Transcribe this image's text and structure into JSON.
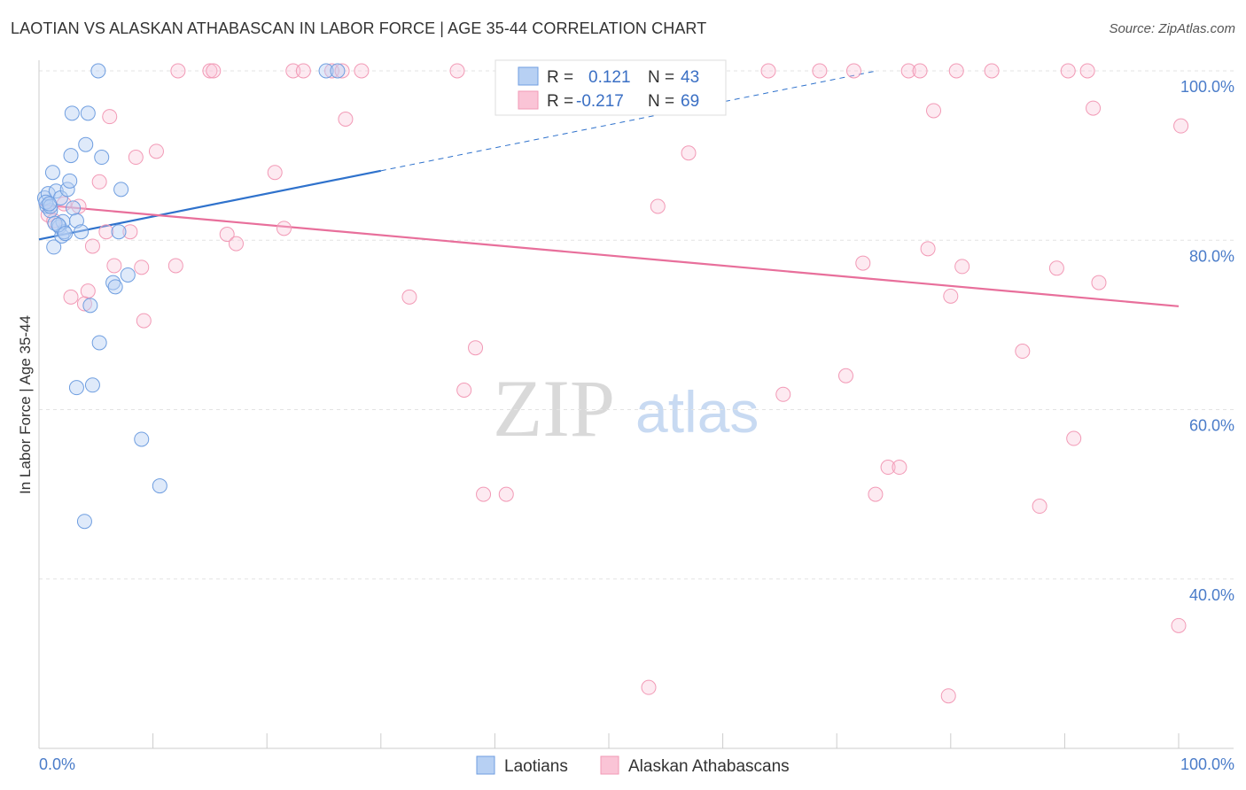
{
  "header": {
    "title": "LAOTIAN VS ALASKAN ATHABASCAN IN LABOR FORCE | AGE 35-44 CORRELATION CHART",
    "source": "Source: ZipAtlas.com"
  },
  "watermark": {
    "zip": "ZIP",
    "atlas": "atlas"
  },
  "legend": {
    "r_label": "R =",
    "n_label": "N =",
    "rows": [
      {
        "r": "0.121",
        "n": "43"
      },
      {
        "r": "-0.217",
        "n": "69"
      }
    ]
  },
  "chart_data": {
    "type": "scatter",
    "title": "LAOTIAN VS ALASKAN ATHABASCAN IN LABOR FORCE | AGE 35-44 CORRELATION CHART",
    "xlabel": "",
    "ylabel": "In Labor Force | Age 35-44",
    "xlim": [
      0,
      100
    ],
    "ylim": [
      20,
      100
    ],
    "x_tick_labels": [
      "0.0%",
      "100.0%"
    ],
    "y_tick_labels": [
      "100.0%",
      "80.0%",
      "60.0%",
      "40.0%"
    ],
    "y_ticks": [
      100,
      80,
      60,
      40
    ],
    "colors": {
      "laotians": "#6f9ee0",
      "alaskan": "#f29ab6",
      "laotians_line": "#2f72cc",
      "alaskan_line": "#e86f9b"
    },
    "series": [
      {
        "name": "Laotians",
        "r": 0.121,
        "n": 43,
        "trend": {
          "x": [
            0,
            30
          ],
          "y": [
            80.1,
            88.2
          ],
          "dashed_to": [
            73.5,
            100
          ]
        },
        "points": [
          [
            0.5,
            85
          ],
          [
            0.7,
            84
          ],
          [
            0.8,
            85.5
          ],
          [
            1.0,
            83.5
          ],
          [
            0.6,
            84.5
          ],
          [
            1.2,
            88
          ],
          [
            1.0,
            84
          ],
          [
            1.5,
            85.8
          ],
          [
            1.3,
            79.2
          ],
          [
            1.8,
            81.6
          ],
          [
            2.0,
            80.5
          ],
          [
            2.2,
            81
          ],
          [
            2.1,
            82.2
          ],
          [
            1.4,
            82
          ],
          [
            1.9,
            85
          ],
          [
            2.5,
            86
          ],
          [
            2.7,
            87
          ],
          [
            2.8,
            90
          ],
          [
            2.9,
            95
          ],
          [
            3.0,
            83.8
          ],
          [
            3.3,
            82.3
          ],
          [
            3.7,
            81
          ],
          [
            4.1,
            91.3
          ],
          [
            4.3,
            95
          ],
          [
            4.5,
            72.3
          ],
          [
            5.5,
            89.8
          ],
          [
            5.3,
            67.9
          ],
          [
            5.2,
            100
          ],
          [
            6.5,
            75
          ],
          [
            6.7,
            74.5
          ],
          [
            7.0,
            81
          ],
          [
            7.2,
            86
          ],
          [
            7.8,
            75.9
          ],
          [
            3.3,
            62.6
          ],
          [
            4.7,
            62.9
          ],
          [
            9.0,
            56.5
          ],
          [
            10.6,
            51
          ],
          [
            4.0,
            46.8
          ],
          [
            25.2,
            100
          ],
          [
            26.2,
            100
          ],
          [
            1.7,
            81.8
          ],
          [
            0.9,
            84.3
          ],
          [
            2.3,
            80.8
          ]
        ]
      },
      {
        "name": "Alaskan Athabascans",
        "r": -0.217,
        "n": 69,
        "trend": {
          "x": [
            0,
            100
          ],
          "y": [
            84.2,
            72.2
          ]
        },
        "points": [
          [
            0.8,
            83
          ],
          [
            1.3,
            82.3
          ],
          [
            2.2,
            84.3
          ],
          [
            3.5,
            84
          ],
          [
            4.0,
            72.5
          ],
          [
            2.8,
            73.3
          ],
          [
            4.3,
            74
          ],
          [
            4.7,
            79.3
          ],
          [
            5.3,
            86.9
          ],
          [
            5.9,
            81
          ],
          [
            6.2,
            94.6
          ],
          [
            6.6,
            77
          ],
          [
            8.0,
            81
          ],
          [
            8.5,
            89.8
          ],
          [
            9.0,
            76.8
          ],
          [
            9.2,
            70.5
          ],
          [
            10.3,
            90.5
          ],
          [
            12.0,
            77
          ],
          [
            12.2,
            100
          ],
          [
            15.0,
            100
          ],
          [
            15.3,
            100
          ],
          [
            16.5,
            80.7
          ],
          [
            17.3,
            79.6
          ],
          [
            20.7,
            88
          ],
          [
            21.5,
            81.4
          ],
          [
            22.3,
            100
          ],
          [
            23.2,
            100
          ],
          [
            25.7,
            100
          ],
          [
            26.6,
            100
          ],
          [
            26.9,
            94.3
          ],
          [
            28.3,
            100
          ],
          [
            32.5,
            73.3
          ],
          [
            36.7,
            100
          ],
          [
            38.3,
            67.3
          ],
          [
            37.3,
            62.3
          ],
          [
            39.0,
            50
          ],
          [
            41.0,
            50
          ],
          [
            51.5,
            100
          ],
          [
            53.5,
            27.2
          ],
          [
            54.3,
            84
          ],
          [
            57.0,
            90.3
          ],
          [
            64.0,
            100
          ],
          [
            65.3,
            61.8
          ],
          [
            68.5,
            100
          ],
          [
            70.8,
            64
          ],
          [
            71.5,
            100
          ],
          [
            72.3,
            77.3
          ],
          [
            74.5,
            53.2
          ],
          [
            75.5,
            53.2
          ],
          [
            76.3,
            100
          ],
          [
            77.3,
            100
          ],
          [
            78.0,
            79
          ],
          [
            78.5,
            95.3
          ],
          [
            79.8,
            26.2
          ],
          [
            80.0,
            73.4
          ],
          [
            80.5,
            100
          ],
          [
            81.0,
            76.9
          ],
          [
            83.6,
            100
          ],
          [
            86.3,
            66.9
          ],
          [
            87.8,
            48.6
          ],
          [
            89.3,
            76.7
          ],
          [
            90.3,
            100
          ],
          [
            90.8,
            56.6
          ],
          [
            92.0,
            100
          ],
          [
            92.5,
            95.6
          ],
          [
            93.0,
            75
          ],
          [
            100.0,
            34.5
          ],
          [
            100.2,
            93.5
          ],
          [
            73.4,
            50
          ]
        ]
      }
    ],
    "legend_labels": [
      "Laotians",
      "Alaskan Athabascans"
    ]
  }
}
